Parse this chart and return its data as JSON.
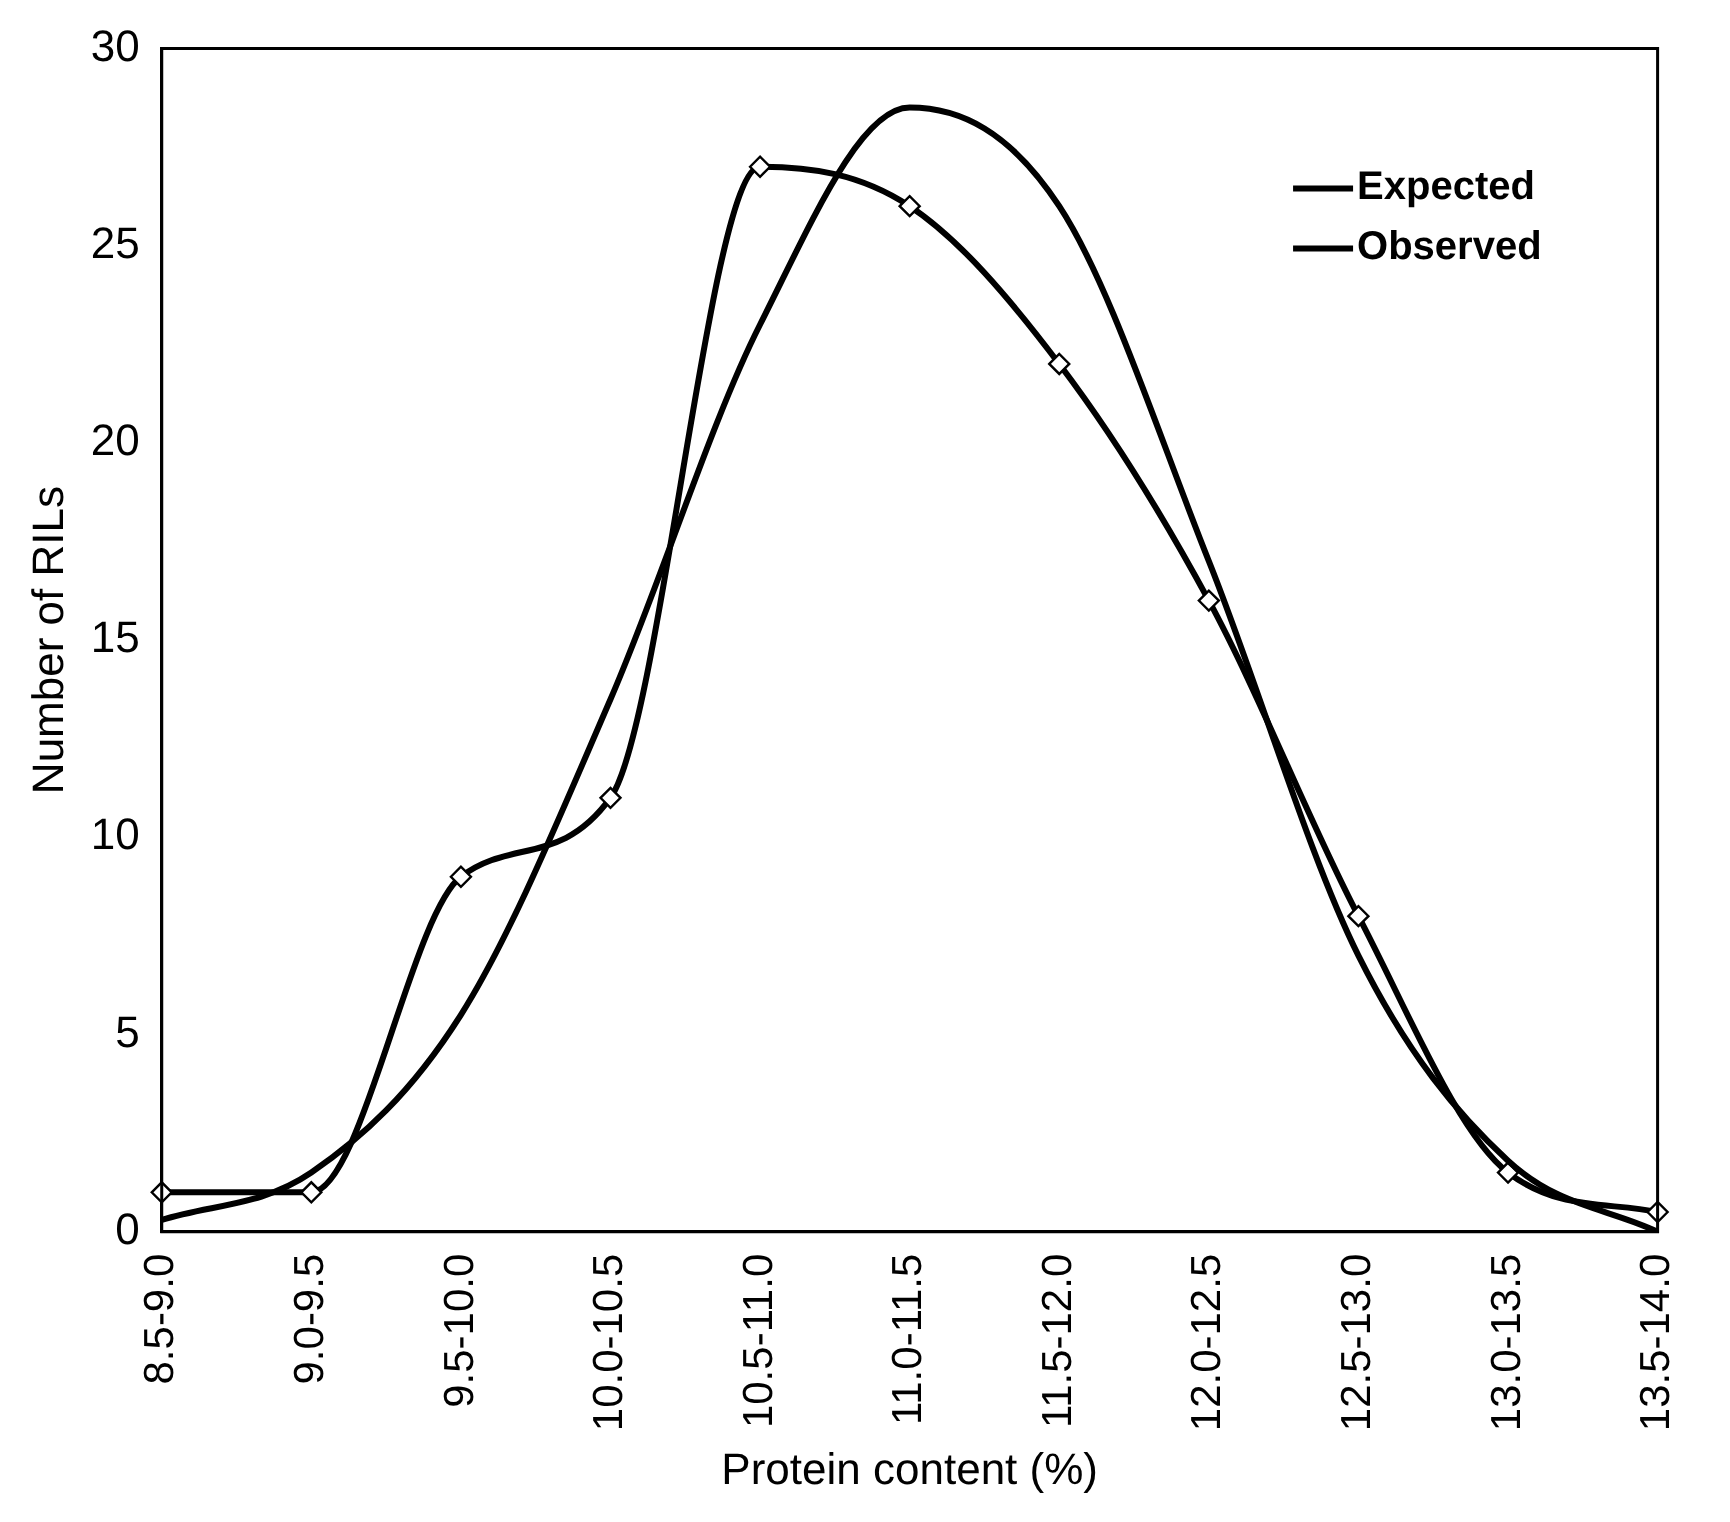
{
  "chart_data": {
    "type": "line",
    "xlabel": "Protein content (%)",
    "ylabel": "Number of RILs",
    "categories": [
      "8.5-9.0",
      "9.0-9.5",
      "9.5-10.0",
      "10.0-10.5",
      "10.5-11.0",
      "11.0-11.5",
      "11.5-12.0",
      "12.0-12.5",
      "12.5-13.0",
      "13.0-13.5",
      "13.5-14.0"
    ],
    "series": [
      {
        "name": "Expected",
        "color": "#000000",
        "marker": "none",
        "line_style": "solid",
        "values": [
          0.3,
          1.5,
          5.5,
          13.5,
          23,
          28.5,
          26,
          17,
          7,
          1.8,
          0
        ]
      },
      {
        "name": "Observed",
        "color": "#000000",
        "marker": "diamond",
        "line_style": "solid",
        "values": [
          1,
          1,
          9,
          11,
          27,
          26,
          22,
          16,
          8,
          1.5,
          0.5
        ]
      }
    ],
    "ylim": [
      0,
      30
    ],
    "yticks": [
      0,
      5,
      10,
      15,
      20,
      25,
      30
    ],
    "grid": false,
    "legend": "top right"
  }
}
